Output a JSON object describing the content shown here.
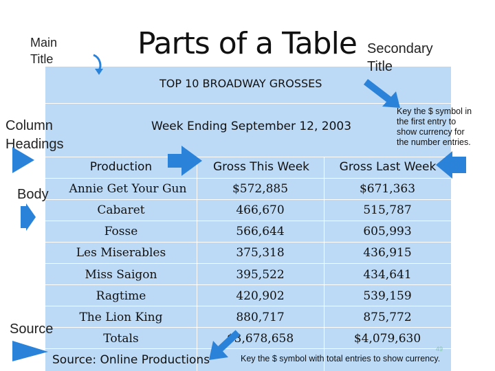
{
  "slide": {
    "title": "Parts of a Table",
    "page_number": "49"
  },
  "labels": {
    "main_title": [
      "Main",
      "Title"
    ],
    "secondary_title": [
      "Secondary",
      "Title"
    ],
    "column_headings": [
      "Column",
      "Headings"
    ],
    "body": "Body",
    "source": "Source"
  },
  "notes": {
    "currency_first": [
      "Key the $ symbol in",
      "the first entry to",
      "show currency for",
      "the number entries."
    ],
    "currency_total": "Key the $ symbol with total entries to show currency."
  },
  "table": {
    "main_title": "TOP 10 BROADWAY GROSSES",
    "secondary_title": "Week Ending September 12, 2003",
    "headers": [
      "Production",
      "Gross This Week",
      "Gross Last Week"
    ],
    "rows": [
      [
        "Annie Get Your Gun",
        "$572,885",
        "$671,363"
      ],
      [
        "Cabaret",
        "466,670",
        "515,787"
      ],
      [
        "Fosse",
        "566,644",
        "605,993"
      ],
      [
        "Les Miserables",
        "375,318",
        "436,915"
      ],
      [
        "Miss Saigon",
        "395,522",
        "434,641"
      ],
      [
        "Ragtime",
        "420,902",
        "539,159"
      ],
      [
        "The Lion King",
        "880,717",
        "875,772"
      ],
      [
        "Totals",
        "$3,678,658",
        "$4,079,630"
      ]
    ],
    "source": "Source:  Online Productions"
  },
  "colors": {
    "table_bg": "#bcd9f5",
    "arrow": "#2b82d9"
  }
}
